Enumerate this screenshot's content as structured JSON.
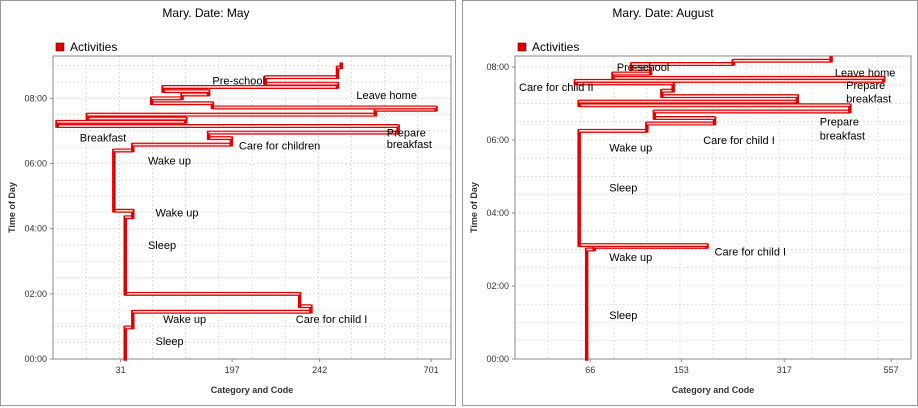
{
  "chart_data": [
    {
      "type": "line",
      "title": "Mary. Date: May",
      "legend": {
        "label": "Activities",
        "color": "#e00000",
        "position": "top-left"
      },
      "xlabel": "Category and Code",
      "ylabel": "Time of Day",
      "x_ticks": [
        "31",
        "197",
        "242",
        "701"
      ],
      "y_ticks": [
        "00:00",
        "02:00",
        "04:00",
        "06:00",
        "08:00"
      ],
      "ylim_hours": [
        0,
        9.3
      ],
      "grid": true,
      "steps": [
        {
          "time": 0.0,
          "x": 0.18
        },
        {
          "time": 0.97,
          "x": 0.18
        },
        {
          "time": 0.97,
          "x": 0.2
        },
        {
          "time": 1.45,
          "x": 0.2
        },
        {
          "time": 1.45,
          "x": 0.67
        },
        {
          "time": 1.62,
          "x": 0.67
        },
        {
          "time": 1.62,
          "x": 0.64
        },
        {
          "time": 2.0,
          "x": 0.64
        },
        {
          "time": 2.0,
          "x": 0.18
        },
        {
          "time": 4.35,
          "x": 0.18
        },
        {
          "time": 4.35,
          "x": 0.2
        },
        {
          "time": 4.55,
          "x": 0.2
        },
        {
          "time": 4.55,
          "x": 0.15
        },
        {
          "time": 6.4,
          "x": 0.15
        },
        {
          "time": 6.4,
          "x": 0.2
        },
        {
          "time": 6.58,
          "x": 0.2
        },
        {
          "time": 6.58,
          "x": 0.46
        },
        {
          "time": 6.78,
          "x": 0.46
        },
        {
          "time": 6.78,
          "x": 0.4
        },
        {
          "time": 6.95,
          "x": 0.4
        },
        {
          "time": 6.95,
          "x": 0.9
        },
        {
          "time": 7.15,
          "x": 0.9
        },
        {
          "time": 7.15,
          "x": 0.0
        },
        {
          "time": 7.28,
          "x": 0.0
        },
        {
          "time": 7.28,
          "x": 0.34
        },
        {
          "time": 7.38,
          "x": 0.34
        },
        {
          "time": 7.38,
          "x": 0.08
        },
        {
          "time": 7.5,
          "x": 0.08
        },
        {
          "time": 7.5,
          "x": 0.84
        },
        {
          "time": 7.65,
          "x": 0.84
        },
        {
          "time": 7.65,
          "x": 1.0
        },
        {
          "time": 7.72,
          "x": 1.0
        },
        {
          "time": 7.72,
          "x": 0.41
        },
        {
          "time": 7.85,
          "x": 0.41
        },
        {
          "time": 7.85,
          "x": 0.25
        },
        {
          "time": 8.0,
          "x": 0.25
        },
        {
          "time": 8.0,
          "x": 0.33
        },
        {
          "time": 8.12,
          "x": 0.33
        },
        {
          "time": 8.12,
          "x": 0.4
        },
        {
          "time": 8.22,
          "x": 0.4
        },
        {
          "time": 8.22,
          "x": 0.28
        },
        {
          "time": 8.35,
          "x": 0.28
        },
        {
          "time": 8.35,
          "x": 0.74
        },
        {
          "time": 8.45,
          "x": 0.74
        },
        {
          "time": 8.45,
          "x": 0.55
        },
        {
          "time": 8.65,
          "x": 0.55
        },
        {
          "time": 8.65,
          "x": 0.74
        },
        {
          "time": 8.95,
          "x": 0.74
        },
        {
          "time": 8.95,
          "x": 0.75
        },
        {
          "time": 9.05,
          "x": 0.75
        }
      ],
      "annotations": [
        {
          "text": "Sleep",
          "x": 0.26,
          "time": 0.55
        },
        {
          "text": "Wake up",
          "x": 0.28,
          "time": 1.23
        },
        {
          "text": "Care for child I",
          "x": 0.63,
          "time": 1.23
        },
        {
          "text": "Sleep",
          "x": 0.24,
          "time": 3.5
        },
        {
          "text": "Wake up",
          "x": 0.26,
          "time": 4.5
        },
        {
          "text": "Wake up",
          "x": 0.24,
          "time": 6.1
        },
        {
          "text": "Care for children",
          "x": 0.48,
          "time": 6.55
        },
        {
          "text": "Prepare",
          "x": 0.87,
          "time": 6.95
        },
        {
          "text": "breakfast",
          "x": 0.87,
          "time": 6.6
        },
        {
          "text": "Breakfast",
          "x": 0.06,
          "time": 6.8
        },
        {
          "text": "Leave home",
          "x": 0.79,
          "time": 8.1
        },
        {
          "text": "Pre-school",
          "x": 0.41,
          "time": 8.55
        }
      ]
    },
    {
      "type": "line",
      "title": "Mary. Date: August",
      "legend": {
        "label": "Activities",
        "color": "#e00000",
        "position": "top-left"
      },
      "xlabel": "Category and Code",
      "ylabel": "Time of Day",
      "x_ticks": [
        "66",
        "153",
        "317",
        "557"
      ],
      "y_ticks": [
        "00:00",
        "02:00",
        "04:00",
        "06:00",
        "08:00"
      ],
      "ylim_hours": [
        0,
        8.3
      ],
      "grid": true,
      "steps": [
        {
          "time": 0.0,
          "x": 0.18
        },
        {
          "time": 3.0,
          "x": 0.18
        },
        {
          "time": 3.0,
          "x": 0.2
        },
        {
          "time": 3.07,
          "x": 0.2
        },
        {
          "time": 3.07,
          "x": 0.5
        },
        {
          "time": 3.12,
          "x": 0.5
        },
        {
          "time": 3.12,
          "x": 0.16
        },
        {
          "time": 6.25,
          "x": 0.16
        },
        {
          "time": 6.25,
          "x": 0.34
        },
        {
          "time": 6.45,
          "x": 0.34
        },
        {
          "time": 6.45,
          "x": 0.52
        },
        {
          "time": 6.6,
          "x": 0.52
        },
        {
          "time": 6.6,
          "x": 0.36
        },
        {
          "time": 6.78,
          "x": 0.36
        },
        {
          "time": 6.78,
          "x": 0.88
        },
        {
          "time": 6.95,
          "x": 0.88
        },
        {
          "time": 6.95,
          "x": 0.16
        },
        {
          "time": 7.05,
          "x": 0.16
        },
        {
          "time": 7.05,
          "x": 0.74
        },
        {
          "time": 7.2,
          "x": 0.74
        },
        {
          "time": 7.2,
          "x": 0.38
        },
        {
          "time": 7.35,
          "x": 0.38
        },
        {
          "time": 7.35,
          "x": 0.41
        },
        {
          "time": 7.55,
          "x": 0.41
        },
        {
          "time": 7.55,
          "x": 0.15
        },
        {
          "time": 7.62,
          "x": 0.15
        },
        {
          "time": 7.62,
          "x": 0.97
        },
        {
          "time": 7.7,
          "x": 0.97
        },
        {
          "time": 7.7,
          "x": 0.25
        },
        {
          "time": 7.82,
          "x": 0.25
        },
        {
          "time": 7.82,
          "x": 0.35
        },
        {
          "time": 7.95,
          "x": 0.35
        },
        {
          "time": 7.95,
          "x": 0.3
        },
        {
          "time": 8.08,
          "x": 0.3
        },
        {
          "time": 8.08,
          "x": 0.57
        },
        {
          "time": 8.17,
          "x": 0.57
        },
        {
          "time": 8.17,
          "x": 0.83
        },
        {
          "time": 8.25,
          "x": 0.83
        }
      ],
      "annotations": [
        {
          "text": "Sleep",
          "x": 0.24,
          "time": 1.2
        },
        {
          "text": "Wake up",
          "x": 0.24,
          "time": 2.8
        },
        {
          "text": "Care for child I",
          "x": 0.52,
          "time": 2.95
        },
        {
          "text": "Sleep",
          "x": 0.24,
          "time": 4.7
        },
        {
          "text": "Wake up",
          "x": 0.24,
          "time": 5.8
        },
        {
          "text": "Care for child I",
          "x": 0.49,
          "time": 6.0
        },
        {
          "text": "Prepare",
          "x": 0.8,
          "time": 6.5
        },
        {
          "text": "breakfast",
          "x": 0.8,
          "time": 6.12
        },
        {
          "text": "Prepare",
          "x": 0.87,
          "time": 7.5
        },
        {
          "text": "breakfast",
          "x": 0.87,
          "time": 7.13
        },
        {
          "text": "Care for child II",
          "x": 0.0,
          "time": 7.45
        },
        {
          "text": "Leave home",
          "x": 0.84,
          "time": 7.85
        },
        {
          "text": "Pre-school",
          "x": 0.26,
          "time": 8.0
        }
      ]
    }
  ]
}
